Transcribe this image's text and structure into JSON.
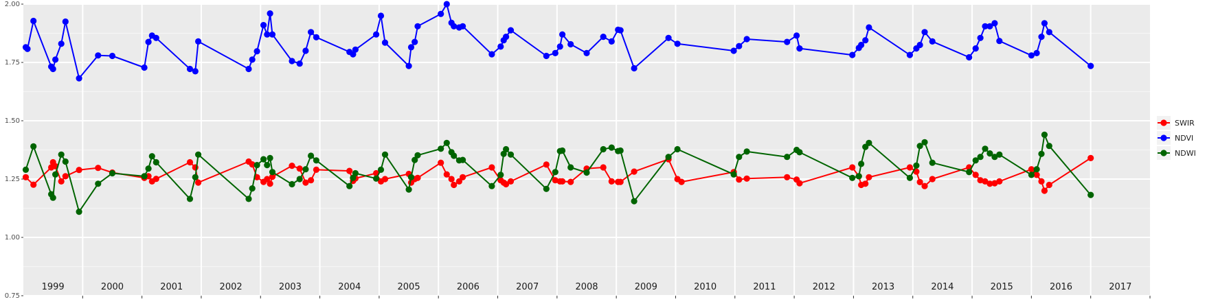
{
  "chart_data": {
    "type": "line",
    "title": "",
    "xlabel": "",
    "ylabel": "",
    "xlim": [
      1998.5,
      2017.5
    ],
    "ylim": [
      0.75,
      2.0
    ],
    "y_ticks": [
      "0.75",
      "1.00",
      "1.25",
      "1.50",
      "1.75",
      "2.00"
    ],
    "year_labels": [
      "1999",
      "2000",
      "2001",
      "2002",
      "2003",
      "2004",
      "2005",
      "2006",
      "2007",
      "2008",
      "2009",
      "2010",
      "2011",
      "2012",
      "2013",
      "2014",
      "2015",
      "2016",
      "2017"
    ],
    "grid": true,
    "legend_position": "right",
    "series": [
      {
        "name": "SWIR",
        "color": "#ff0000",
        "points": [
          [
            1998.54,
            1.258
          ],
          [
            1998.67,
            1.226
          ],
          [
            1998.97,
            1.3
          ],
          [
            1999.0,
            1.322
          ],
          [
            1999.04,
            1.305
          ],
          [
            1999.14,
            1.24
          ],
          [
            1999.21,
            1.262
          ],
          [
            1999.44,
            1.289
          ],
          [
            1999.76,
            1.298
          ],
          [
            2000.0,
            1.278
          ],
          [
            2000.54,
            1.255
          ],
          [
            2000.61,
            1.262
          ],
          [
            2000.67,
            1.24
          ],
          [
            2000.74,
            1.251
          ],
          [
            2001.31,
            1.322
          ],
          [
            2001.4,
            1.3
          ],
          [
            2001.45,
            1.235
          ],
          [
            2002.3,
            1.325
          ],
          [
            2002.36,
            1.313
          ],
          [
            2002.44,
            1.258
          ],
          [
            2002.55,
            1.238
          ],
          [
            2002.61,
            1.25
          ],
          [
            2002.66,
            1.23
          ],
          [
            2002.7,
            1.26
          ],
          [
            2003.03,
            1.307
          ],
          [
            2003.16,
            1.295
          ],
          [
            2003.26,
            1.235
          ],
          [
            2003.35,
            1.245
          ],
          [
            2003.44,
            1.29
          ],
          [
            2004.0,
            1.285
          ],
          [
            2004.06,
            1.242
          ],
          [
            2004.1,
            1.253
          ],
          [
            2004.45,
            1.275
          ],
          [
            2004.53,
            1.24
          ],
          [
            2004.6,
            1.25
          ],
          [
            2005.0,
            1.272
          ],
          [
            2005.04,
            1.235
          ],
          [
            2005.1,
            1.25
          ],
          [
            2005.15,
            1.255
          ],
          [
            2005.54,
            1.32
          ],
          [
            2005.64,
            1.27
          ],
          [
            2005.72,
            1.25
          ],
          [
            2005.76,
            1.225
          ],
          [
            2005.85,
            1.24
          ],
          [
            2005.91,
            1.258
          ],
          [
            2006.4,
            1.3
          ],
          [
            2006.55,
            1.245
          ],
          [
            2006.6,
            1.235
          ],
          [
            2006.64,
            1.228
          ],
          [
            2006.72,
            1.24
          ],
          [
            2007.32,
            1.312
          ],
          [
            2007.47,
            1.245
          ],
          [
            2007.55,
            1.24
          ],
          [
            2007.59,
            1.24
          ],
          [
            2007.73,
            1.238
          ],
          [
            2008.0,
            1.295
          ],
          [
            2008.28,
            1.3
          ],
          [
            2008.42,
            1.24
          ],
          [
            2008.53,
            1.238
          ],
          [
            2008.57,
            1.238
          ],
          [
            2008.8,
            1.282
          ],
          [
            2009.38,
            1.335
          ],
          [
            2009.53,
            1.25
          ],
          [
            2009.6,
            1.238
          ],
          [
            2010.48,
            1.28
          ],
          [
            2010.57,
            1.248
          ],
          [
            2010.7,
            1.252
          ],
          [
            2011.38,
            1.258
          ],
          [
            2011.54,
            1.248
          ],
          [
            2011.59,
            1.232
          ],
          [
            2012.48,
            1.3
          ],
          [
            2012.59,
            1.262
          ],
          [
            2012.63,
            1.225
          ],
          [
            2012.7,
            1.23
          ],
          [
            2012.76,
            1.258
          ],
          [
            2013.45,
            1.3
          ],
          [
            2013.56,
            1.282
          ],
          [
            2013.62,
            1.237
          ],
          [
            2013.7,
            1.22
          ],
          [
            2013.83,
            1.25
          ],
          [
            2014.45,
            1.3
          ],
          [
            2014.56,
            1.268
          ],
          [
            2014.64,
            1.245
          ],
          [
            2014.72,
            1.24
          ],
          [
            2014.8,
            1.23
          ],
          [
            2014.88,
            1.232
          ],
          [
            2014.96,
            1.24
          ],
          [
            2015.5,
            1.292
          ],
          [
            2015.59,
            1.268
          ],
          [
            2015.67,
            1.24
          ],
          [
            2015.72,
            1.2
          ],
          [
            2015.8,
            1.225
          ],
          [
            2016.5,
            1.34
          ]
        ]
      },
      {
        "name": "NDVI",
        "color": "#0000ff",
        "points": [
          [
            1998.54,
            1.815
          ],
          [
            1998.57,
            1.808
          ],
          [
            1998.67,
            1.928
          ],
          [
            1998.97,
            1.732
          ],
          [
            1999.0,
            1.722
          ],
          [
            1999.04,
            1.762
          ],
          [
            1999.14,
            1.83
          ],
          [
            1999.21,
            1.925
          ],
          [
            1999.44,
            1.682
          ],
          [
            1999.76,
            1.78
          ],
          [
            2000.0,
            1.778
          ],
          [
            2000.54,
            1.728
          ],
          [
            2000.61,
            1.838
          ],
          [
            2000.67,
            1.865
          ],
          [
            2000.74,
            1.855
          ],
          [
            2001.31,
            1.722
          ],
          [
            2001.4,
            1.712
          ],
          [
            2001.45,
            1.84
          ],
          [
            2002.3,
            1.722
          ],
          [
            2002.36,
            1.762
          ],
          [
            2002.44,
            1.798
          ],
          [
            2002.55,
            1.91
          ],
          [
            2002.61,
            1.87
          ],
          [
            2002.66,
            1.96
          ],
          [
            2002.7,
            1.87
          ],
          [
            2003.03,
            1.756
          ],
          [
            2003.16,
            1.745
          ],
          [
            2003.26,
            1.8
          ],
          [
            2003.35,
            1.88
          ],
          [
            2003.44,
            1.858
          ],
          [
            2004.0,
            1.795
          ],
          [
            2004.06,
            1.785
          ],
          [
            2004.1,
            1.805
          ],
          [
            2004.45,
            1.87
          ],
          [
            2004.53,
            1.95
          ],
          [
            2004.6,
            1.835
          ],
          [
            2005.0,
            1.735
          ],
          [
            2005.04,
            1.815
          ],
          [
            2005.1,
            1.838
          ],
          [
            2005.15,
            1.905
          ],
          [
            2005.54,
            1.958
          ],
          [
            2005.64,
            2.0
          ],
          [
            2005.72,
            1.92
          ],
          [
            2005.76,
            1.905
          ],
          [
            2005.85,
            1.9
          ],
          [
            2005.91,
            1.905
          ],
          [
            2006.4,
            1.785
          ],
          [
            2006.55,
            1.818
          ],
          [
            2006.6,
            1.845
          ],
          [
            2006.64,
            1.86
          ],
          [
            2006.72,
            1.888
          ],
          [
            2007.32,
            1.778
          ],
          [
            2007.47,
            1.79
          ],
          [
            2007.55,
            1.818
          ],
          [
            2007.59,
            1.87
          ],
          [
            2007.73,
            1.828
          ],
          [
            2008.0,
            1.79
          ],
          [
            2008.28,
            1.86
          ],
          [
            2008.42,
            1.84
          ],
          [
            2008.53,
            1.89
          ],
          [
            2008.57,
            1.888
          ],
          [
            2008.8,
            1.725
          ],
          [
            2009.38,
            1.855
          ],
          [
            2009.53,
            1.83
          ],
          [
            2010.48,
            1.8
          ],
          [
            2010.57,
            1.82
          ],
          [
            2010.7,
            1.85
          ],
          [
            2011.38,
            1.838
          ],
          [
            2011.54,
            1.865
          ],
          [
            2011.59,
            1.81
          ],
          [
            2012.48,
            1.782
          ],
          [
            2012.59,
            1.812
          ],
          [
            2012.63,
            1.825
          ],
          [
            2012.7,
            1.845
          ],
          [
            2012.76,
            1.9
          ],
          [
            2013.45,
            1.782
          ],
          [
            2013.56,
            1.81
          ],
          [
            2013.62,
            1.825
          ],
          [
            2013.7,
            1.88
          ],
          [
            2013.83,
            1.84
          ],
          [
            2014.45,
            1.772
          ],
          [
            2014.56,
            1.81
          ],
          [
            2014.64,
            1.855
          ],
          [
            2014.72,
            1.905
          ],
          [
            2014.8,
            1.905
          ],
          [
            2014.88,
            1.918
          ],
          [
            2014.96,
            1.842
          ],
          [
            2015.5,
            1.78
          ],
          [
            2015.59,
            1.79
          ],
          [
            2015.67,
            1.86
          ],
          [
            2015.72,
            1.918
          ],
          [
            2015.8,
            1.88
          ],
          [
            2016.5,
            1.735
          ]
        ]
      },
      {
        "name": "NDWI",
        "color": "#006400",
        "points": [
          [
            1998.54,
            1.29
          ],
          [
            1998.67,
            1.39
          ],
          [
            1998.97,
            1.185
          ],
          [
            1999.0,
            1.17
          ],
          [
            1999.04,
            1.27
          ],
          [
            1999.14,
            1.355
          ],
          [
            1999.21,
            1.325
          ],
          [
            1999.44,
            1.11
          ],
          [
            1999.76,
            1.23
          ],
          [
            2000.0,
            1.275
          ],
          [
            2000.54,
            1.262
          ],
          [
            2000.61,
            1.295
          ],
          [
            2000.67,
            1.348
          ],
          [
            2000.74,
            1.322
          ],
          [
            2001.31,
            1.165
          ],
          [
            2001.4,
            1.258
          ],
          [
            2001.45,
            1.355
          ],
          [
            2002.3,
            1.165
          ],
          [
            2002.36,
            1.21
          ],
          [
            2002.44,
            1.31
          ],
          [
            2002.55,
            1.335
          ],
          [
            2002.61,
            1.31
          ],
          [
            2002.66,
            1.34
          ],
          [
            2002.7,
            1.28
          ],
          [
            2003.03,
            1.228
          ],
          [
            2003.16,
            1.25
          ],
          [
            2003.26,
            1.292
          ],
          [
            2003.35,
            1.35
          ],
          [
            2003.44,
            1.33
          ],
          [
            2004.0,
            1.22
          ],
          [
            2004.06,
            1.255
          ],
          [
            2004.1,
            1.275
          ],
          [
            2004.45,
            1.252
          ],
          [
            2004.53,
            1.29
          ],
          [
            2004.6,
            1.355
          ],
          [
            2005.0,
            1.205
          ],
          [
            2005.04,
            1.258
          ],
          [
            2005.1,
            1.332
          ],
          [
            2005.15,
            1.352
          ],
          [
            2005.54,
            1.38
          ],
          [
            2005.64,
            1.405
          ],
          [
            2005.72,
            1.365
          ],
          [
            2005.76,
            1.35
          ],
          [
            2005.85,
            1.33
          ],
          [
            2005.91,
            1.332
          ],
          [
            2006.4,
            1.22
          ],
          [
            2006.55,
            1.268
          ],
          [
            2006.6,
            1.358
          ],
          [
            2006.64,
            1.378
          ],
          [
            2006.72,
            1.355
          ],
          [
            2007.32,
            1.208
          ],
          [
            2007.47,
            1.28
          ],
          [
            2007.55,
            1.37
          ],
          [
            2007.59,
            1.372
          ],
          [
            2007.73,
            1.3
          ],
          [
            2008.0,
            1.278
          ],
          [
            2008.28,
            1.378
          ],
          [
            2008.42,
            1.385
          ],
          [
            2008.53,
            1.37
          ],
          [
            2008.57,
            1.372
          ],
          [
            2008.8,
            1.155
          ],
          [
            2009.38,
            1.345
          ],
          [
            2009.53,
            1.378
          ],
          [
            2010.48,
            1.27
          ],
          [
            2010.57,
            1.345
          ],
          [
            2010.7,
            1.368
          ],
          [
            2011.38,
            1.345
          ],
          [
            2011.54,
            1.375
          ],
          [
            2011.59,
            1.365
          ],
          [
            2012.48,
            1.255
          ],
          [
            2012.59,
            1.262
          ],
          [
            2012.63,
            1.315
          ],
          [
            2012.7,
            1.388
          ],
          [
            2012.76,
            1.405
          ],
          [
            2013.45,
            1.255
          ],
          [
            2013.56,
            1.308
          ],
          [
            2013.62,
            1.392
          ],
          [
            2013.7,
            1.408
          ],
          [
            2013.83,
            1.32
          ],
          [
            2014.45,
            1.28
          ],
          [
            2014.56,
            1.33
          ],
          [
            2014.64,
            1.345
          ],
          [
            2014.72,
            1.38
          ],
          [
            2014.8,
            1.36
          ],
          [
            2014.88,
            1.345
          ],
          [
            2014.96,
            1.355
          ],
          [
            2015.5,
            1.268
          ],
          [
            2015.59,
            1.292
          ],
          [
            2015.67,
            1.358
          ],
          [
            2015.72,
            1.44
          ],
          [
            2015.8,
            1.392
          ],
          [
            2016.5,
            1.182
          ]
        ]
      }
    ]
  }
}
